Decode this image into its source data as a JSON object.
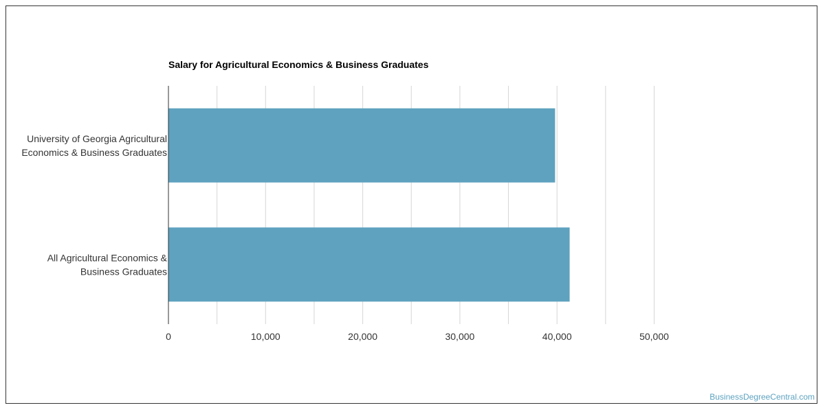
{
  "chart_data": {
    "type": "bar",
    "orientation": "horizontal",
    "title": "Salary for Agricultural Economics & Business Graduates",
    "xlabel": "",
    "ylabel": "",
    "categories": [
      [
        "University of Georgia Agricultural",
        "Economics & Business Graduates"
      ],
      [
        "All Agricultural Economics &",
        "Business Graduates"
      ]
    ],
    "values": [
      39800,
      41300
    ],
    "xlim": [
      0,
      60000
    ],
    "ticks": [
      0,
      10000,
      20000,
      30000,
      40000,
      50000
    ],
    "tick_labels": [
      "0",
      "10,000",
      "20,000",
      "30,000",
      "40,000",
      "50,000"
    ],
    "minor_gridlines": [
      5000,
      15000,
      25000,
      35000,
      45000
    ],
    "grid": true,
    "bar_color": "#5ea2bf",
    "grid_color": "#d6d6d6"
  },
  "watermark": "BusinessDegreeCentral.com"
}
